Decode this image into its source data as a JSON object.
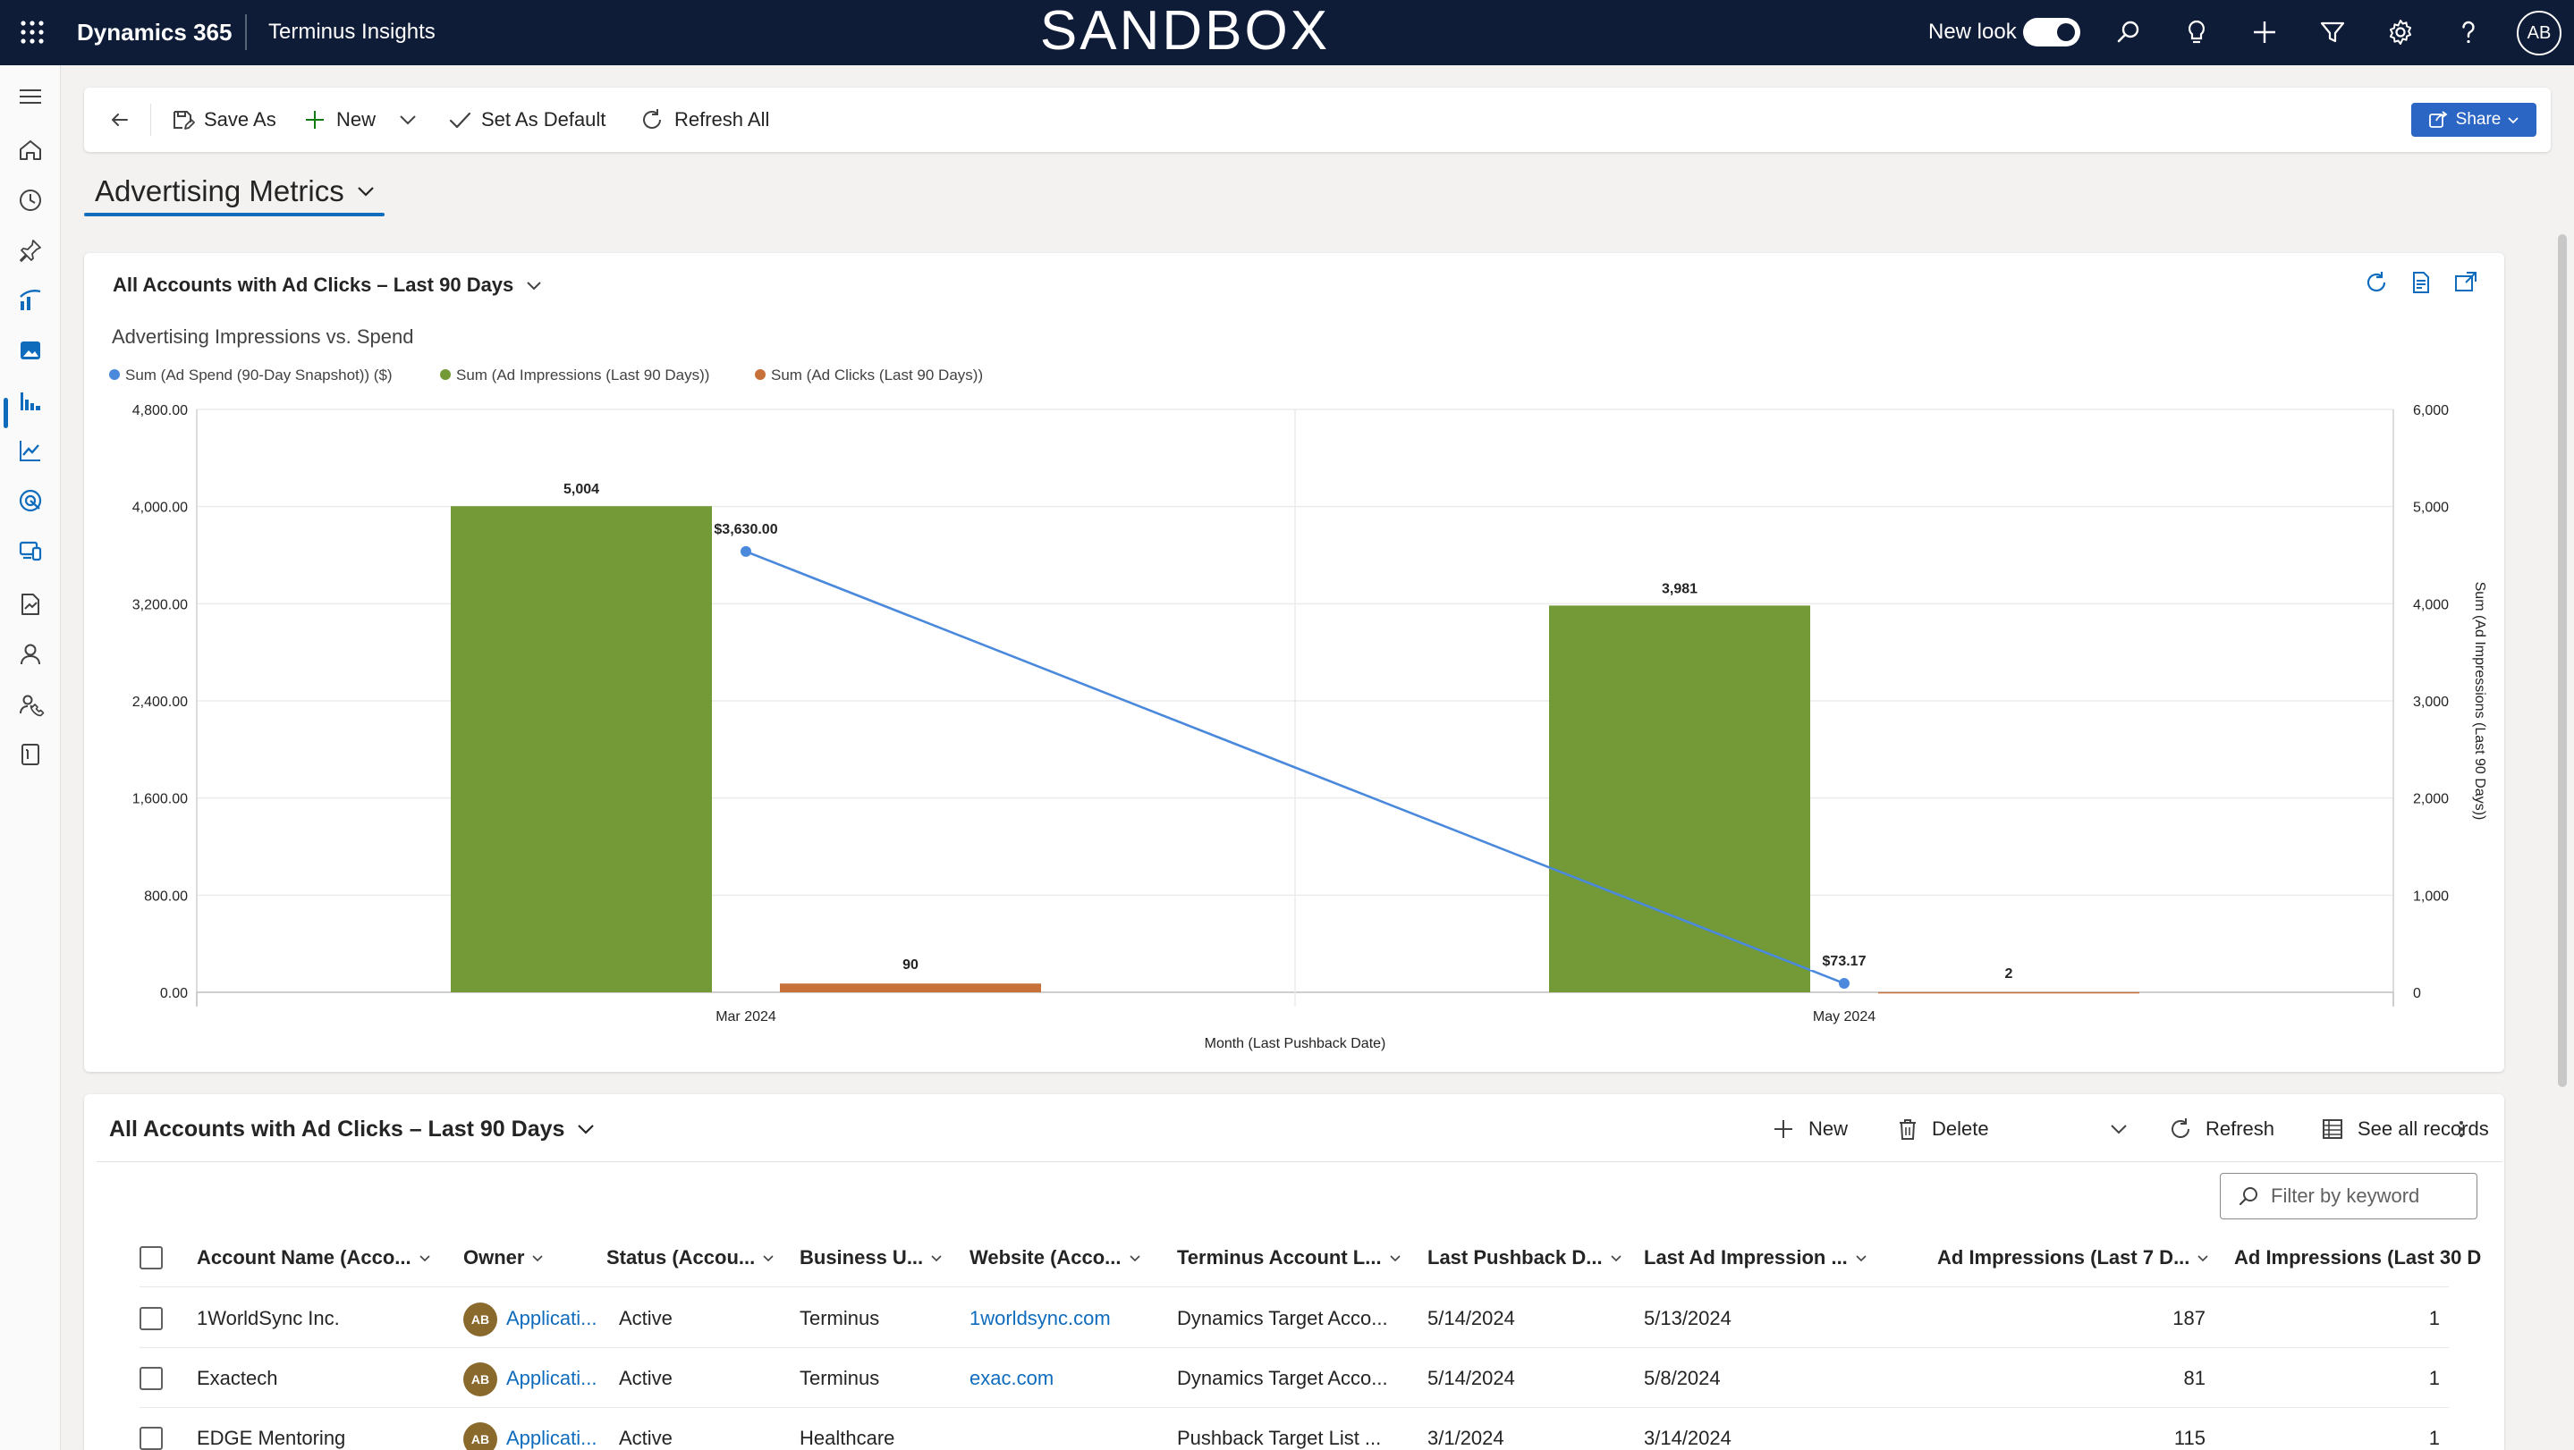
{
  "topbar": {
    "brand": "Dynamics 365",
    "app_name": "Terminus Insights",
    "environment_label": "SANDBOX",
    "new_look_label": "New look",
    "avatar_initials": "AB"
  },
  "command_bar": {
    "save_as": "Save As",
    "new": "New",
    "set_as_default": "Set As Default",
    "refresh_all": "Refresh All",
    "share": "Share"
  },
  "dashboard": {
    "title": "Advertising Metrics"
  },
  "chart_card": {
    "view_name": "All Accounts with Ad Clicks – Last 90 Days"
  },
  "chart_data": {
    "type": "bar",
    "title": "Advertising Impressions vs. Spend",
    "categories": [
      "Mar 2024",
      "May 2024"
    ],
    "xlabel": "Month (Last Pushback Date)",
    "ylabel": "",
    "y2label": "Sum (Ad Impressions (Last 90 Days))",
    "ylim": [
      0,
      4800
    ],
    "y2lim": [
      0,
      6000
    ],
    "yticks": [
      "0.00",
      "800.00",
      "1,600.00",
      "2,400.00",
      "3,200.00",
      "4,000.00",
      "4,800.00"
    ],
    "y2ticks": [
      "0",
      "1,000",
      "2,000",
      "3,000",
      "4,000",
      "5,000",
      "6,000"
    ],
    "legend_position": "top-left",
    "series": [
      {
        "name": "Sum (Ad Spend (90-Day Snapshot)) ($)",
        "type": "line",
        "axis": "left",
        "color": "#4a89dc",
        "values": [
          3630,
          73.17
        ],
        "labels": [
          "$3,630.00",
          "$73.17"
        ]
      },
      {
        "name": "Sum (Ad Impressions (Last 90 Days))",
        "type": "bar",
        "axis": "right",
        "color": "#739a37",
        "values": [
          5004,
          3981
        ],
        "labels": [
          "5,004",
          "3,981"
        ]
      },
      {
        "name": "Sum (Ad Clicks (Last 90 Days))",
        "type": "bar",
        "axis": "right",
        "color": "#c8703a",
        "values": [
          90,
          2
        ],
        "labels": [
          "90",
          "2"
        ]
      }
    ]
  },
  "grid": {
    "view_name": "All Accounts with Ad Clicks – Last 90 Days",
    "commands": {
      "new": "New",
      "delete": "Delete",
      "refresh": "Refresh",
      "see_all": "See all records"
    },
    "filter_placeholder": "Filter by keyword",
    "columns": [
      "Account Name (Acco...",
      "Owner",
      "Status (Accou...",
      "Business U...",
      "Website (Acco...",
      "Terminus Account L...",
      "Last Pushback D...",
      "Last Ad Impression ...",
      "Ad Impressions (Last 7 D...",
      "Ad Impressions (Last 30 D"
    ],
    "rows": [
      {
        "account": "1WorldSync Inc.",
        "owner_initials": "AB",
        "owner": "Applicati...",
        "status": "Active",
        "business_unit": "Terminus",
        "website": "1worldsync.com",
        "terminus_list": "Dynamics Target Acco...",
        "last_pushback": "5/14/2024",
        "last_ad_impression": "5/13/2024",
        "impr_7": "187",
        "impr_30": "1"
      },
      {
        "account": "Exactech",
        "owner_initials": "AB",
        "owner": "Applicati...",
        "status": "Active",
        "business_unit": "Terminus",
        "website": "exac.com",
        "terminus_list": "Dynamics Target Acco...",
        "last_pushback": "5/14/2024",
        "last_ad_impression": "5/8/2024",
        "impr_7": "81",
        "impr_30": "1"
      },
      {
        "account": "EDGE Mentoring",
        "owner_initials": "AB",
        "owner": "Applicati...",
        "status": "Active",
        "business_unit": "Healthcare",
        "website": "",
        "terminus_list": "Pushback Target List ...",
        "last_pushback": "3/1/2024",
        "last_ad_impression": "3/14/2024",
        "impr_7": "115",
        "impr_30": "1"
      }
    ]
  }
}
